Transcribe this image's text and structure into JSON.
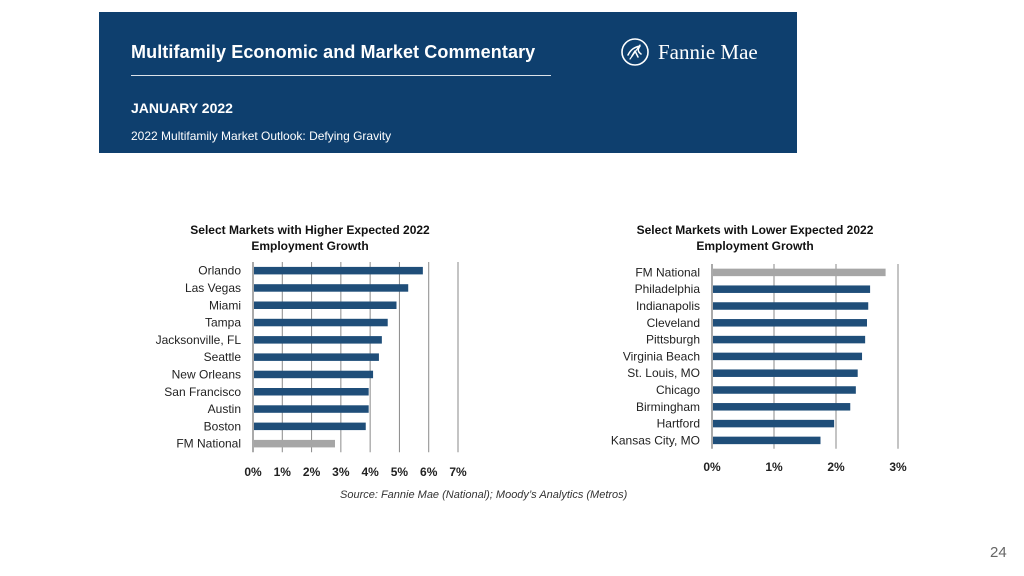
{
  "header": {
    "title": "Multifamily Economic and Market Commentary",
    "date": "JANUARY 2022",
    "subtitle": "2022 Multifamily Market Outlook: Defying Gravity",
    "logo_text": "Fannie Mae",
    "logo_icon": "fannie-mae-emblem-icon"
  },
  "chart_data": [
    {
      "type": "bar",
      "orientation": "horizontal",
      "title_line1": "Select Markets with Higher Expected 2022",
      "title_line2": "Employment Growth",
      "categories": [
        "Orlando",
        "Las Vegas",
        "Miami",
        "Tampa",
        "Jacksonville, FL",
        "Seattle",
        "New Orleans",
        "San Francisco",
        "Austin",
        "Boston",
        "FM National"
      ],
      "values": [
        5.8,
        5.3,
        4.9,
        4.6,
        4.4,
        4.3,
        4.1,
        3.95,
        3.95,
        3.85,
        2.8
      ],
      "ticks": [
        "0%",
        "1%",
        "2%",
        "3%",
        "4%",
        "5%",
        "6%",
        "7%"
      ],
      "xlim": [
        0,
        7
      ],
      "grid": true,
      "colors": {
        "default": "#1f4e79",
        "highlight": "#a6a6a6"
      },
      "highlight": "FM National"
    },
    {
      "type": "bar",
      "orientation": "horizontal",
      "title_line1": "Select Markets with Lower Expected 2022",
      "title_line2": "Employment Growth",
      "categories": [
        "FM National",
        "Philadelphia",
        "Indianapolis",
        "Cleveland",
        "Pittsburgh",
        "Virginia Beach",
        "St. Louis, MO",
        "Chicago",
        "Birmingham",
        "Hartford",
        "Kansas City, MO"
      ],
      "values": [
        2.8,
        2.55,
        2.52,
        2.5,
        2.47,
        2.42,
        2.35,
        2.32,
        2.23,
        1.97,
        1.75
      ],
      "ticks": [
        "0%",
        "1%",
        "2%",
        "3%"
      ],
      "xlim": [
        0,
        3
      ],
      "grid": true,
      "colors": {
        "default": "#1f4e79",
        "highlight": "#a6a6a6"
      },
      "highlight": "FM National"
    }
  ],
  "source": "Source: Fannie Mae (National); Moody’s Analytics (Metros)",
  "page_number": "24"
}
